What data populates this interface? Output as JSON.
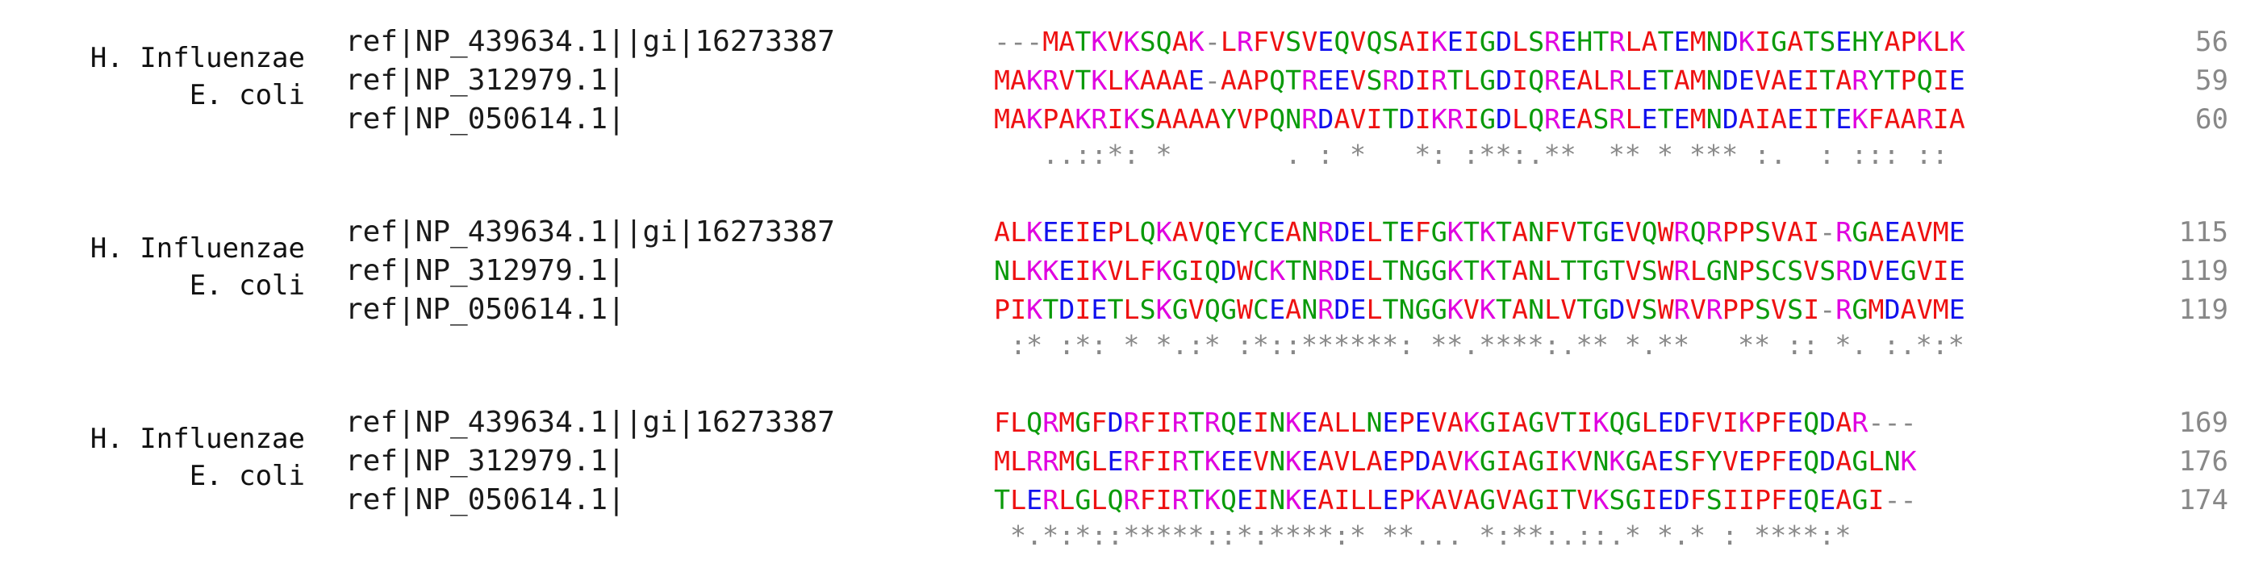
{
  "colors": {
    "hydrophobic": "#ee1111",
    "acidic": "#1111ee",
    "basic": "#e000e0",
    "polar": "#0a9a0a",
    "gap": "#888888",
    "consensus": "#888888",
    "position": "#888888"
  },
  "blocks": [
    {
      "rows": [
        {
          "species": "H. Influenzae",
          "id": "ref|NP_439634.1||gi|16273387",
          "sequence": "---MATKVKSQAK-LRFVSVEQVQSAIKEIGDLSREHTRLATEMNDKIGATSEHYAPKLK",
          "position": "56"
        },
        {
          "species": "E. coli",
          "id": "ref|NP_312979.1|",
          "sequence": "MAKRVTKLKAAAE-AAPQTREEVSRDIRTLGDIQREALRLETAMNDEVAEITARYTPQIE",
          "position": "59"
        },
        {
          "species": "",
          "id": "ref|NP_050614.1|",
          "sequence": "MAKPAKRIKSAAAAYVPQNRDAVITDIKRIGDLQREASRLETEMNDAIAEITEKFAARIA",
          "position": "60"
        }
      ],
      "consensus": "   ..::*: *       . : *   *: :**:.**  ** * *** :.  : ::: ::"
    },
    {
      "rows": [
        {
          "species": "H. Influenzae",
          "id": "ref|NP_439634.1||gi|16273387",
          "sequence": "ALKEEIEPLQKAVQEYCEANRDELTEFGKTKTANFVTGEVQWRQRPPSVAI-RGAEAVME",
          "position": "115"
        },
        {
          "species": "E. coli",
          "id": "ref|NP_312979.1|",
          "sequence": "NLKKEIKVLFKGIQDWCKTNRDELTNGGKTKTANLTTGTVSWRLGNPSCSVSRDVEGVIE",
          "position": "119"
        },
        {
          "species": "",
          "id": "ref|NP_050614.1|",
          "sequence": "PIKTDIETLSKGVQGWCEANRDELTNGGKVKTANLVTGDVSWRVRPPSVSI-RGMDAVME",
          "position": "119"
        }
      ],
      "consensus": " :* :*: * *.:* :*::******: **.****:.** *.**   ** :: *. :.*:*"
    },
    {
      "rows": [
        {
          "species": "H. Influenzae",
          "id": "ref|NP_439634.1||gi|16273387",
          "sequence": "FLQRMGFDRFIRTRQEINKEALLNEPEVAKGIAGVTIKQGLEDFVIKPFEQDAR---",
          "position": "169"
        },
        {
          "species": "E. coli",
          "id": "ref|NP_312979.1|",
          "sequence": "MLRRMGLERFIRTKEEVNKEAVLAEPDAVKGIAGIKVNKGAESFYVEPFEQDAGLNK",
          "position": "176"
        },
        {
          "species": "",
          "id": "ref|NP_050614.1|",
          "sequence": "TLERLGLQRFIRTKQEINKEAILLEPKAVAGVAGITVKSGIEDFSIIPFEQEAGI--",
          "position": "174"
        }
      ],
      "consensus": " *.*:*::*****::*:****:* **... *:**:.::.* *.* : ****:*"
    }
  ]
}
